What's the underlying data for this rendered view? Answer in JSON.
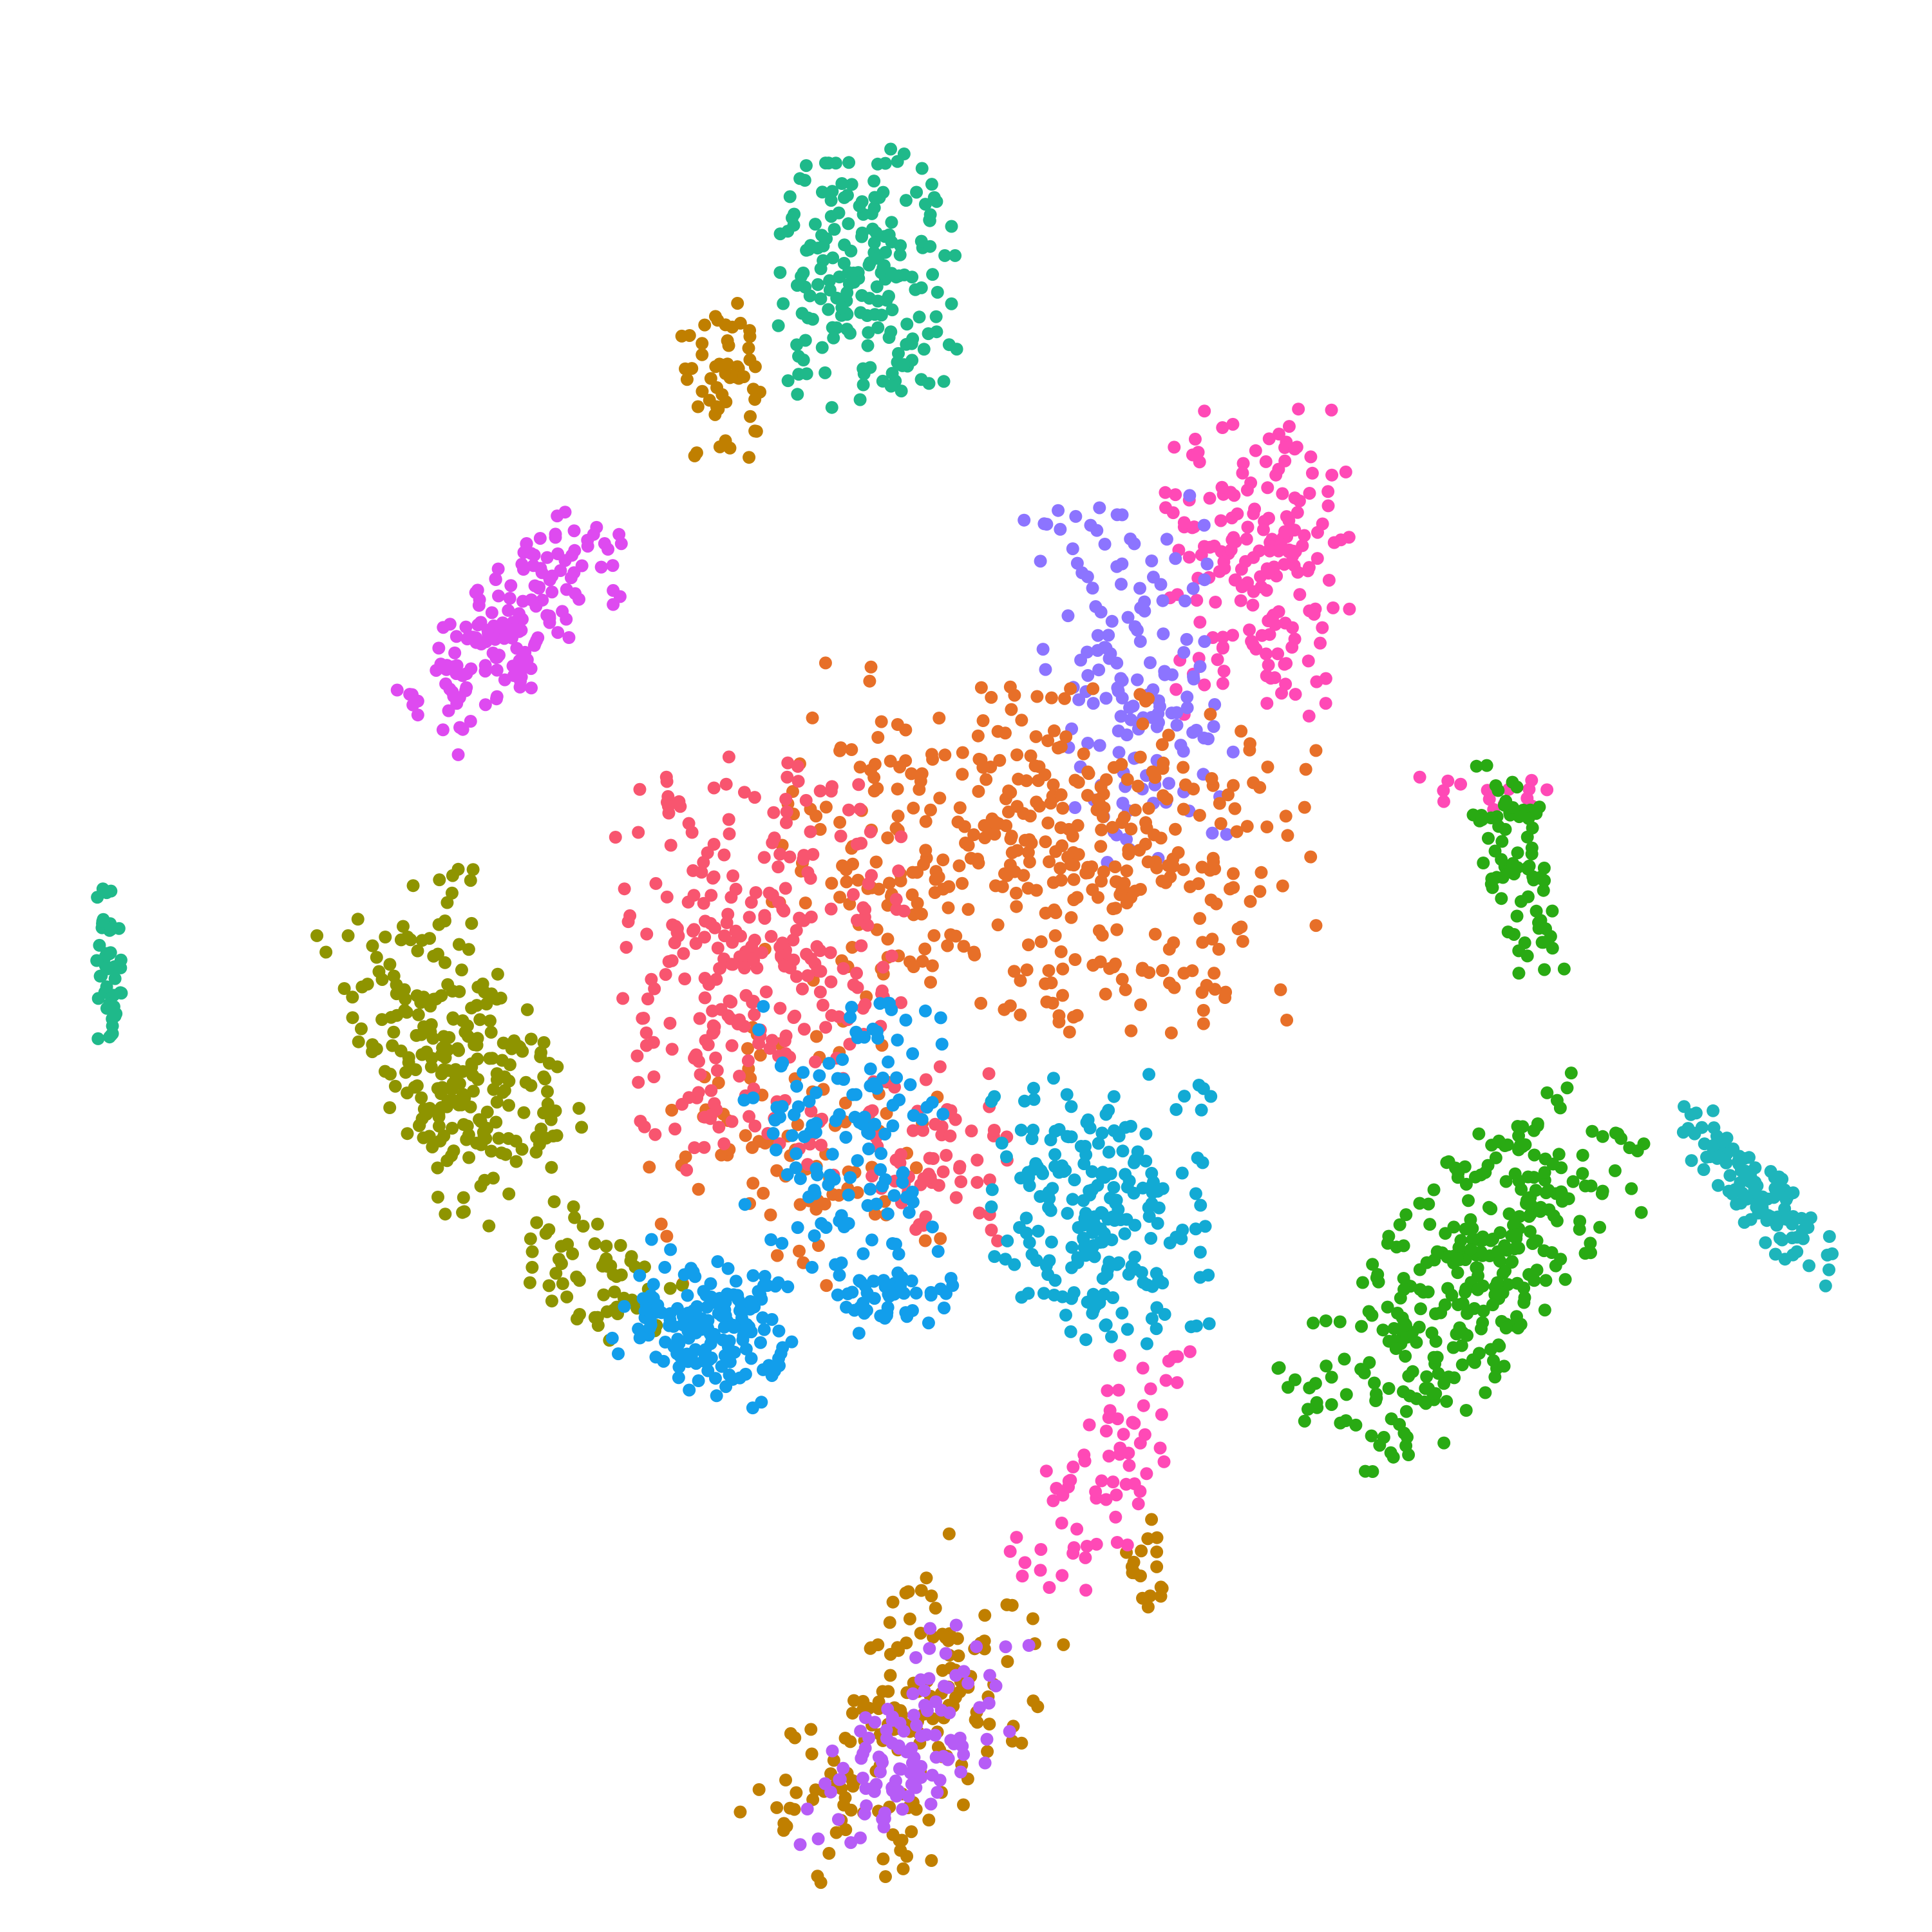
{
  "chart_data": {
    "type": "scatter",
    "title": "",
    "xlabel": "",
    "ylabel": "",
    "axes_visible": false,
    "grid": false,
    "legend": "none",
    "xlim": [
      0,
      1560
    ],
    "ylim": [
      0,
      1560
    ],
    "y_direction": "down",
    "series": [
      {
        "color": "#1FB98A",
        "clusters": [
          {
            "cx": 700,
            "cy": 225,
            "rx": 75,
            "ry": 105,
            "n": 190,
            "angle": 0
          },
          {
            "cx": 88,
            "cy": 775,
            "rx": 12,
            "ry": 68,
            "n": 45,
            "angle": 0
          }
        ]
      },
      {
        "color": "#C07F00",
        "clusters": [
          {
            "cx": 585,
            "cy": 305,
            "rx": 38,
            "ry": 65,
            "n": 55,
            "angle": 0
          },
          {
            "cx": 735,
            "cy": 1395,
            "rx": 80,
            "ry": 145,
            "n": 170,
            "angle": 38
          },
          {
            "cx": 928,
            "cy": 1265,
            "rx": 20,
            "ry": 40,
            "n": 18,
            "angle": 0
          }
        ]
      },
      {
        "color": "#FF49B6",
        "clusters": [
          {
            "cx": 1015,
            "cy": 455,
            "rx": 75,
            "ry": 130,
            "n": 190,
            "angle": 0
          },
          {
            "cx": 890,
            "cy": 1185,
            "rx": 45,
            "ry": 120,
            "n": 70,
            "angle": 25
          },
          {
            "cx": 1200,
            "cy": 640,
            "rx": 60,
            "ry": 15,
            "n": 15,
            "angle": 0
          }
        ]
      },
      {
        "color": "#8C74FF",
        "clusters": [
          {
            "cx": 920,
            "cy": 545,
            "rx": 75,
            "ry": 150,
            "n": 150,
            "angle": -8
          }
        ]
      },
      {
        "color": "#E76F28",
        "clusters": [
          {
            "cx": 850,
            "cy": 690,
            "rx": 220,
            "ry": 140,
            "n": 430,
            "angle": 10
          },
          {
            "cx": 640,
            "cy": 930,
            "rx": 120,
            "ry": 110,
            "n": 90,
            "angle": 0
          }
        ]
      },
      {
        "color": "#F8556F",
        "clusters": [
          {
            "cx": 610,
            "cy": 780,
            "rx": 120,
            "ry": 170,
            "n": 300,
            "angle": 0
          },
          {
            "cx": 760,
            "cy": 930,
            "rx": 60,
            "ry": 80,
            "n": 60,
            "angle": 0
          }
        ]
      },
      {
        "color": "#DE4AF0",
        "clusters": [
          {
            "cx": 420,
            "cy": 505,
            "rx": 45,
            "ry": 110,
            "n": 170,
            "angle": 45
          }
        ]
      },
      {
        "color": "#8E9400",
        "clusters": [
          {
            "cx": 370,
            "cy": 850,
            "rx": 75,
            "ry": 140,
            "n": 250,
            "angle": -25
          },
          {
            "cx": 480,
            "cy": 1030,
            "rx": 70,
            "ry": 40,
            "n": 60,
            "angle": 30
          }
        ]
      },
      {
        "color": "#129EEB",
        "clusters": [
          {
            "cx": 570,
            "cy": 1070,
            "rx": 70,
            "ry": 55,
            "n": 170,
            "angle": 20
          },
          {
            "cx": 680,
            "cy": 930,
            "rx": 90,
            "ry": 120,
            "n": 140,
            "angle": 0
          },
          {
            "cx": 720,
            "cy": 1050,
            "rx": 50,
            "ry": 30,
            "n": 40,
            "angle": 0
          }
        ]
      },
      {
        "color": "#12AAD4",
        "clusters": [
          {
            "cx": 890,
            "cy": 975,
            "rx": 90,
            "ry": 110,
            "n": 220,
            "angle": 0
          }
        ]
      },
      {
        "color": "#29AA13",
        "clusters": [
          {
            "cx": 1185,
            "cy": 1030,
            "rx": 75,
            "ry": 180,
            "n": 330,
            "angle": 40
          },
          {
            "cx": 1225,
            "cy": 700,
            "rx": 30,
            "ry": 90,
            "n": 80,
            "angle": -10
          }
        ]
      },
      {
        "color": "#1EB5BB",
        "clusters": [
          {
            "cx": 1420,
            "cy": 965,
            "rx": 25,
            "ry": 95,
            "n": 110,
            "angle": -40
          }
        ]
      },
      {
        "color": "#B65CF6",
        "clusters": [
          {
            "cx": 735,
            "cy": 1410,
            "rx": 55,
            "ry": 125,
            "n": 110,
            "angle": 40
          }
        ]
      }
    ]
  }
}
